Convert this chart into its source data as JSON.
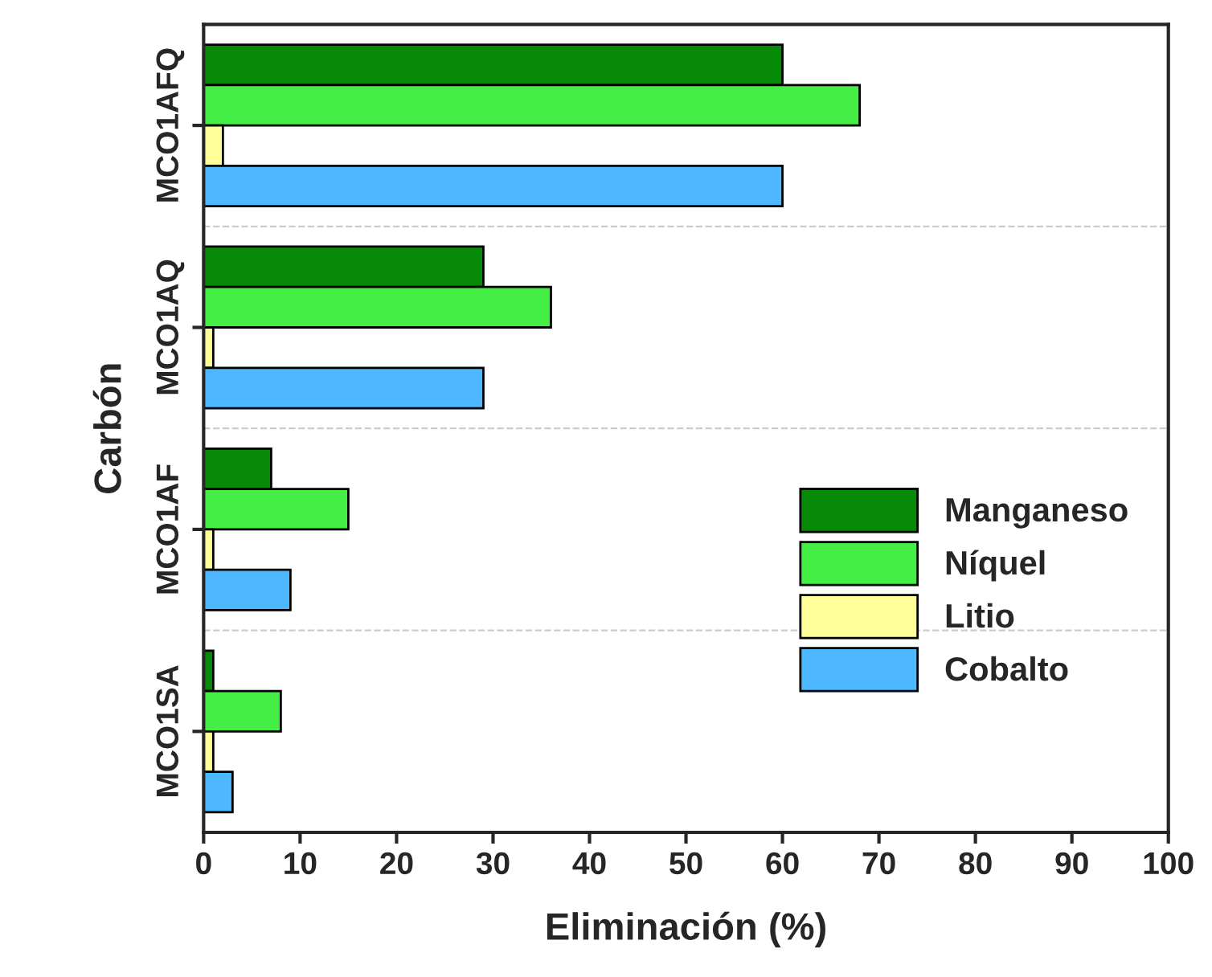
{
  "chart_data": {
    "type": "bar",
    "orientation": "horizontal",
    "xlabel": "Eliminación (%)",
    "ylabel": "Carbón",
    "categories": [
      "MCO1AFQ",
      "MCO1AQ",
      "MCO1AF",
      "MCO1SA"
    ],
    "series": [
      {
        "name": "Manganeso",
        "color": "#078a07",
        "values": [
          60,
          29,
          7,
          1
        ]
      },
      {
        "name": "Níquel",
        "color": "#44ee44",
        "values": [
          68,
          36,
          15,
          8
        ]
      },
      {
        "name": "Litio",
        "color": "#ffff99",
        "values": [
          2,
          1,
          1,
          1
        ]
      },
      {
        "name": "Cobalto",
        "color": "#4db8ff",
        "values": [
          60,
          29,
          9,
          3
        ]
      }
    ],
    "xlim": [
      0,
      100
    ],
    "xticks": [
      0,
      10,
      20,
      30,
      40,
      50,
      60,
      70,
      80,
      90,
      100
    ],
    "grid": "y",
    "legend": "right"
  }
}
